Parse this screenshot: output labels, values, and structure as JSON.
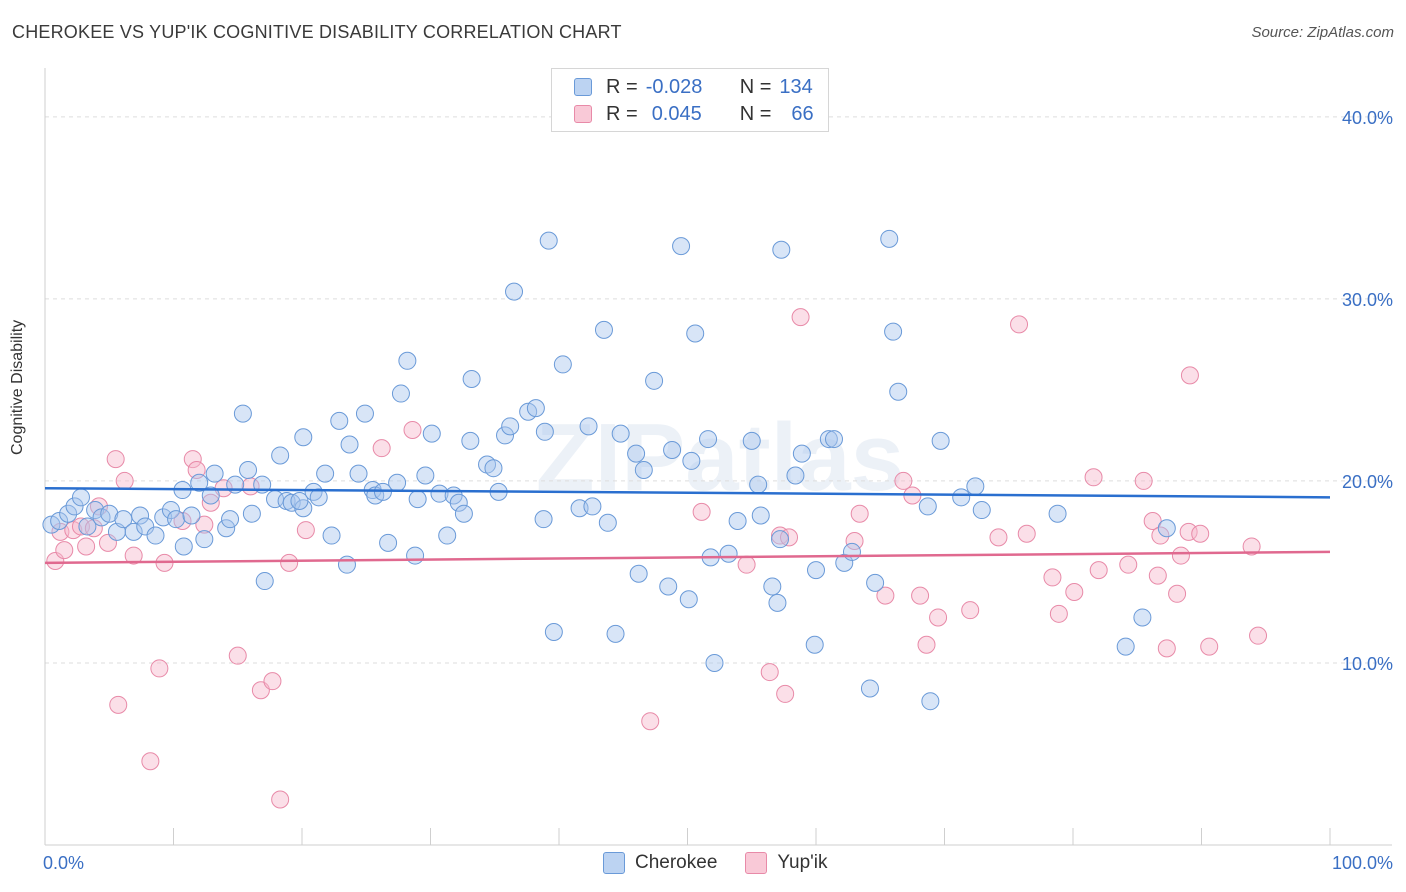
{
  "title": "CHEROKEE VS YUP'IK COGNITIVE DISABILITY CORRELATION CHART",
  "source": "Source: ZipAtlas.com",
  "watermark": "ZIPatlas",
  "legend": {
    "rows": [
      {
        "r_label": "R =",
        "r_value": "-0.028",
        "n_label": "N =",
        "n_value": "134"
      },
      {
        "r_label": "R =",
        "r_value": "0.045",
        "n_label": "N =",
        "n_value": "66"
      }
    ]
  },
  "colors": {
    "blue_fill": "#a8c6ee",
    "blue_stroke": "#6a9ad8",
    "blue_line": "#2a6fcf",
    "pink_fill": "#f6b8cb",
    "pink_stroke": "#e88aa8",
    "pink_line": "#e0698f",
    "axis_text": "#3a6fc4",
    "grid": "#dddddd"
  },
  "chart_data": {
    "type": "scatter",
    "title": "CHEROKEE VS YUP'IK COGNITIVE DISABILITY CORRELATION CHART",
    "ylabel": "Cognitive Disability",
    "xlabel": "",
    "xlim": [
      0,
      100
    ],
    "ylim": [
      0,
      42.3
    ],
    "x_tick_labels": [
      "0.0%",
      "100.0%"
    ],
    "y_ticks": [
      10,
      20,
      30,
      40
    ],
    "y_tick_labels": [
      "10.0%",
      "20.0%",
      "30.0%",
      "40.0%"
    ],
    "series": [
      {
        "name": "Cherokee",
        "color": "blue",
        "trend": {
          "x": [
            0,
            100
          ],
          "y": [
            19.6,
            19.1
          ]
        },
        "points": [
          [
            0.5,
            17.6
          ],
          [
            1.1,
            17.8
          ],
          [
            1.8,
            18.2
          ],
          [
            2.3,
            18.6
          ],
          [
            2.8,
            19.1
          ],
          [
            3.3,
            17.5
          ],
          [
            3.9,
            18.4
          ],
          [
            4.4,
            18.0
          ],
          [
            5.0,
            18.2
          ],
          [
            5.6,
            17.2
          ],
          [
            6.1,
            17.9
          ],
          [
            6.9,
            17.2
          ],
          [
            7.4,
            18.1
          ],
          [
            7.8,
            17.5
          ],
          [
            8.6,
            17.0
          ],
          [
            9.2,
            18.0
          ],
          [
            9.8,
            18.4
          ],
          [
            10.2,
            17.9
          ],
          [
            10.7,
            19.5
          ],
          [
            10.8,
            16.4
          ],
          [
            11.4,
            18.1
          ],
          [
            12.0,
            19.9
          ],
          [
            12.4,
            16.8
          ],
          [
            12.9,
            19.2
          ],
          [
            13.2,
            20.4
          ],
          [
            14.1,
            17.4
          ],
          [
            14.4,
            17.9
          ],
          [
            14.8,
            19.8
          ],
          [
            15.4,
            23.7
          ],
          [
            15.8,
            20.6
          ],
          [
            16.1,
            18.2
          ],
          [
            16.9,
            19.8
          ],
          [
            17.1,
            14.5
          ],
          [
            17.9,
            19.0
          ],
          [
            18.3,
            21.4
          ],
          [
            18.8,
            18.9
          ],
          [
            19.2,
            18.8
          ],
          [
            20.1,
            18.5
          ],
          [
            19.8,
            18.9
          ],
          [
            20.1,
            22.4
          ],
          [
            20.9,
            19.4
          ],
          [
            21.3,
            19.1
          ],
          [
            21.8,
            20.4
          ],
          [
            22.3,
            17.0
          ],
          [
            22.9,
            23.3
          ],
          [
            23.5,
            15.4
          ],
          [
            23.7,
            22.0
          ],
          [
            24.4,
            20.4
          ],
          [
            24.9,
            23.7
          ],
          [
            25.5,
            19.5
          ],
          [
            25.7,
            19.2
          ],
          [
            26.3,
            19.4
          ],
          [
            26.7,
            16.6
          ],
          [
            27.4,
            19.9
          ],
          [
            27.7,
            24.8
          ],
          [
            28.2,
            26.6
          ],
          [
            28.8,
            15.9
          ],
          [
            29.0,
            19.0
          ],
          [
            29.6,
            20.3
          ],
          [
            30.1,
            22.6
          ],
          [
            30.7,
            19.3
          ],
          [
            31.3,
            17.0
          ],
          [
            31.8,
            19.2
          ],
          [
            32.2,
            18.8
          ],
          [
            32.6,
            18.2
          ],
          [
            33.1,
            22.2
          ],
          [
            33.2,
            25.6
          ],
          [
            34.4,
            20.9
          ],
          [
            34.9,
            20.7
          ],
          [
            35.3,
            19.4
          ],
          [
            35.8,
            22.5
          ],
          [
            36.2,
            23.0
          ],
          [
            36.5,
            30.4
          ],
          [
            37.6,
            23.8
          ],
          [
            38.2,
            24.0
          ],
          [
            38.8,
            17.9
          ],
          [
            38.9,
            22.7
          ],
          [
            39.2,
            33.2
          ],
          [
            39.6,
            11.7
          ],
          [
            40.3,
            26.4
          ],
          [
            41.6,
            18.5
          ],
          [
            42.3,
            23.0
          ],
          [
            42.6,
            18.6
          ],
          [
            43.5,
            28.3
          ],
          [
            43.8,
            17.7
          ],
          [
            44.4,
            11.6
          ],
          [
            44.8,
            22.6
          ],
          [
            46.0,
            21.5
          ],
          [
            46.2,
            14.9
          ],
          [
            46.6,
            20.6
          ],
          [
            47.4,
            25.5
          ],
          [
            48.5,
            14.2
          ],
          [
            48.8,
            21.7
          ],
          [
            49.5,
            32.9
          ],
          [
            50.1,
            13.5
          ],
          [
            50.3,
            21.1
          ],
          [
            50.6,
            28.1
          ],
          [
            51.6,
            22.3
          ],
          [
            51.8,
            15.8
          ],
          [
            52.1,
            10.0
          ],
          [
            53.2,
            16.0
          ],
          [
            53.9,
            17.8
          ],
          [
            55.0,
            22.2
          ],
          [
            55.5,
            19.8
          ],
          [
            55.7,
            18.1
          ],
          [
            56.6,
            14.2
          ],
          [
            57.0,
            13.3
          ],
          [
            57.2,
            16.8
          ],
          [
            57.3,
            32.7
          ],
          [
            58.4,
            20.3
          ],
          [
            58.9,
            21.5
          ],
          [
            59.9,
            11.0
          ],
          [
            60.0,
            15.1
          ],
          [
            61.0,
            22.3
          ],
          [
            61.4,
            22.3
          ],
          [
            62.2,
            15.5
          ],
          [
            62.8,
            16.1
          ],
          [
            64.2,
            8.6
          ],
          [
            64.6,
            14.4
          ],
          [
            65.7,
            33.3
          ],
          [
            66.0,
            28.2
          ],
          [
            66.4,
            24.9
          ],
          [
            68.7,
            18.6
          ],
          [
            68.9,
            7.9
          ],
          [
            69.7,
            22.2
          ],
          [
            71.3,
            19.1
          ],
          [
            72.4,
            19.7
          ],
          [
            72.9,
            18.4
          ],
          [
            78.8,
            18.2
          ],
          [
            84.1,
            10.9
          ],
          [
            85.4,
            12.5
          ],
          [
            87.3,
            17.4
          ]
        ]
      },
      {
        "name": "Yup'ik",
        "color": "pink",
        "trend": {
          "x": [
            0,
            100
          ],
          "y": [
            15.5,
            16.1
          ]
        },
        "points": [
          [
            0.8,
            15.6
          ],
          [
            1.2,
            17.2
          ],
          [
            1.5,
            16.2
          ],
          [
            2.2,
            17.3
          ],
          [
            2.8,
            17.5
          ],
          [
            3.2,
            16.4
          ],
          [
            3.8,
            17.4
          ],
          [
            4.2,
            18.6
          ],
          [
            4.9,
            16.6
          ],
          [
            5.5,
            21.2
          ],
          [
            5.7,
            7.7
          ],
          [
            6.2,
            20.0
          ],
          [
            6.9,
            15.9
          ],
          [
            8.2,
            4.6
          ],
          [
            8.9,
            9.7
          ],
          [
            9.3,
            15.5
          ],
          [
            10.7,
            17.8
          ],
          [
            11.5,
            21.2
          ],
          [
            11.8,
            20.6
          ],
          [
            12.4,
            17.6
          ],
          [
            12.9,
            18.8
          ],
          [
            13.9,
            19.6
          ],
          [
            15.0,
            10.4
          ],
          [
            16.0,
            19.7
          ],
          [
            16.8,
            8.5
          ],
          [
            17.7,
            9.0
          ],
          [
            18.3,
            2.5
          ],
          [
            19.0,
            15.5
          ],
          [
            20.3,
            17.3
          ],
          [
            26.2,
            21.8
          ],
          [
            28.6,
            22.8
          ],
          [
            47.1,
            6.8
          ],
          [
            51.1,
            18.3
          ],
          [
            54.6,
            15.4
          ],
          [
            56.4,
            9.5
          ],
          [
            57.2,
            17.0
          ],
          [
            57.6,
            8.3
          ],
          [
            57.9,
            16.9
          ],
          [
            58.8,
            29.0
          ],
          [
            63.0,
            16.7
          ],
          [
            63.4,
            18.2
          ],
          [
            65.4,
            13.7
          ],
          [
            66.8,
            20.0
          ],
          [
            67.5,
            19.2
          ],
          [
            68.1,
            13.7
          ],
          [
            68.6,
            11.0
          ],
          [
            69.5,
            12.5
          ],
          [
            72.0,
            12.9
          ],
          [
            74.2,
            16.9
          ],
          [
            75.8,
            28.6
          ],
          [
            76.4,
            17.1
          ],
          [
            78.4,
            14.7
          ],
          [
            78.9,
            12.7
          ],
          [
            80.1,
            13.9
          ],
          [
            81.6,
            20.2
          ],
          [
            82.0,
            15.1
          ],
          [
            84.3,
            15.4
          ],
          [
            85.5,
            20.0
          ],
          [
            86.2,
            17.8
          ],
          [
            86.6,
            14.8
          ],
          [
            86.8,
            17.0
          ],
          [
            87.3,
            10.8
          ],
          [
            88.1,
            13.8
          ],
          [
            88.4,
            15.9
          ],
          [
            89.0,
            17.2
          ],
          [
            89.1,
            25.8
          ],
          [
            89.9,
            17.1
          ],
          [
            90.6,
            10.9
          ],
          [
            93.9,
            16.4
          ],
          [
            94.4,
            11.5
          ]
        ]
      }
    ]
  },
  "bottom_legend": [
    {
      "label": "Cherokee",
      "color": "blue"
    },
    {
      "label": "Yup'ik",
      "color": "pink"
    }
  ]
}
